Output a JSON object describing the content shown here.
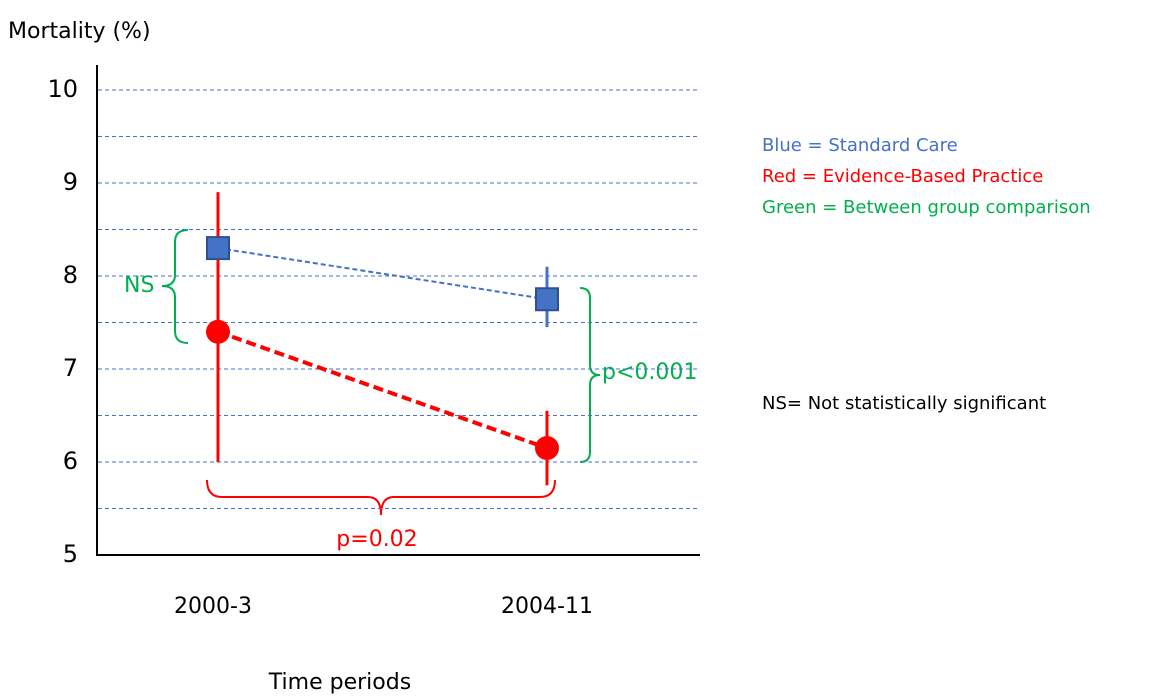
{
  "chart_data": {
    "type": "line",
    "title": "Mortality (%)",
    "x_label": "Time periods",
    "categories": [
      "2000-3",
      "2004-11"
    ],
    "series": [
      {
        "name": "Standard Care",
        "color": "#4472c4",
        "marker": "square",
        "values": [
          8.3,
          7.75
        ],
        "low": [
          7.85,
          7.45
        ],
        "high": [
          8.9,
          8.1
        ]
      },
      {
        "name": "Evidence-Based Practice",
        "color": "#ff0000",
        "marker": "circle",
        "values": [
          7.4,
          6.15
        ],
        "low": [
          6.0,
          5.75
        ],
        "high": [
          8.9,
          6.55
        ]
      }
    ],
    "ylim": [
      5,
      10.25
    ],
    "yticks": [
      5,
      6,
      7,
      8,
      9,
      10
    ],
    "grid": true,
    "grid_values": [
      5.5,
      6,
      6.5,
      7,
      7.5,
      8,
      8.5,
      9,
      9.5,
      10
    ],
    "annotations": [
      "NS",
      "p<0.001",
      "p=0.02"
    ],
    "legend_notes": [
      {
        "text": "Blue = Standard Care",
        "color": "#4472c4"
      },
      {
        "text": "Red = Evidence-Based Practice",
        "color": "#ff0000"
      },
      {
        "text": "Green = Between group comparison",
        "color": "#00b050"
      }
    ],
    "notes": [
      "NS= Not statistically significant"
    ]
  }
}
